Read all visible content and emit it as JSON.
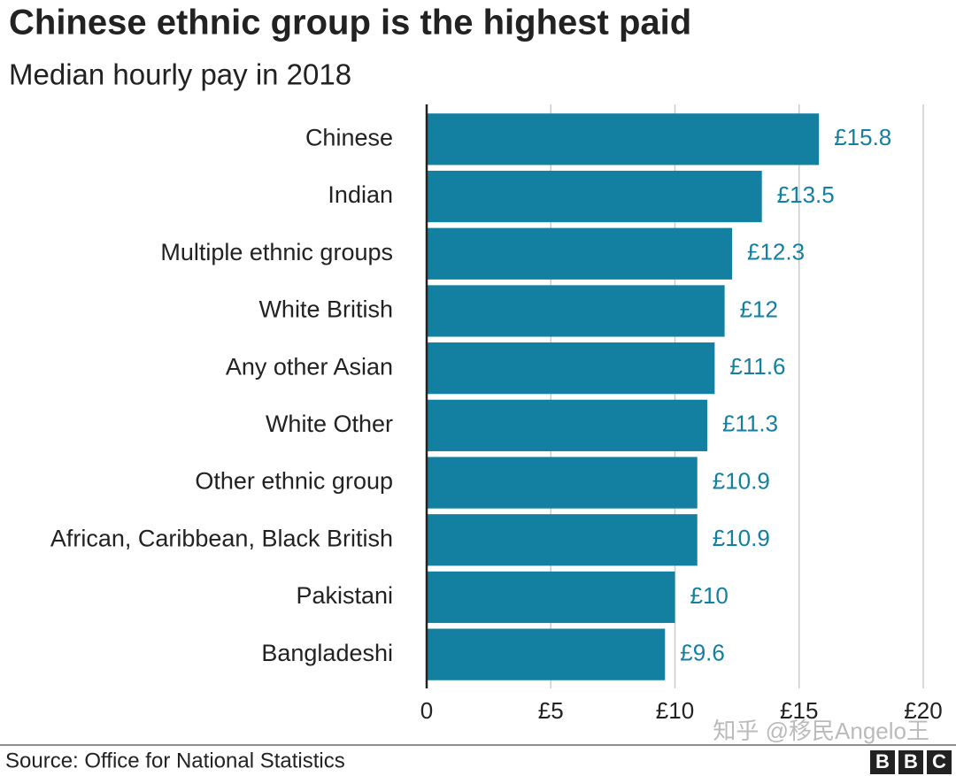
{
  "chart_data": {
    "type": "bar",
    "orientation": "horizontal",
    "title": "Chinese ethnic group is the highest paid",
    "subtitle": "Median hourly pay in 2018",
    "categories": [
      "Chinese",
      "Indian",
      "Multiple ethnic groups",
      "White British",
      "Any other Asian",
      "White Other",
      "Other ethnic group",
      "African, Caribbean, Black British",
      "Pakistani",
      "Bangladeshi"
    ],
    "values": [
      15.8,
      13.5,
      12.3,
      12,
      11.6,
      11.3,
      10.9,
      10.9,
      10,
      9.6
    ],
    "value_labels": [
      "£15.8",
      "£13.5",
      "£12.3",
      "£12",
      "£11.6",
      "£11.3",
      "£10.9",
      "£10.9",
      "£10",
      "£9.6"
    ],
    "color": "#1380a1",
    "xlim": [
      0,
      20
    ],
    "xticks": [
      0,
      {
        "value": 5,
        "label": "£5"
      },
      {
        "value": 10,
        "label": "£10"
      },
      {
        "value": 15,
        "label": "£15"
      },
      {
        "value": 20,
        "label": "£20"
      }
    ],
    "grid": true,
    "source": "Source: Office for National Statistics",
    "watermark": "知乎 @移民Angelo王",
    "logo": "BBC"
  }
}
